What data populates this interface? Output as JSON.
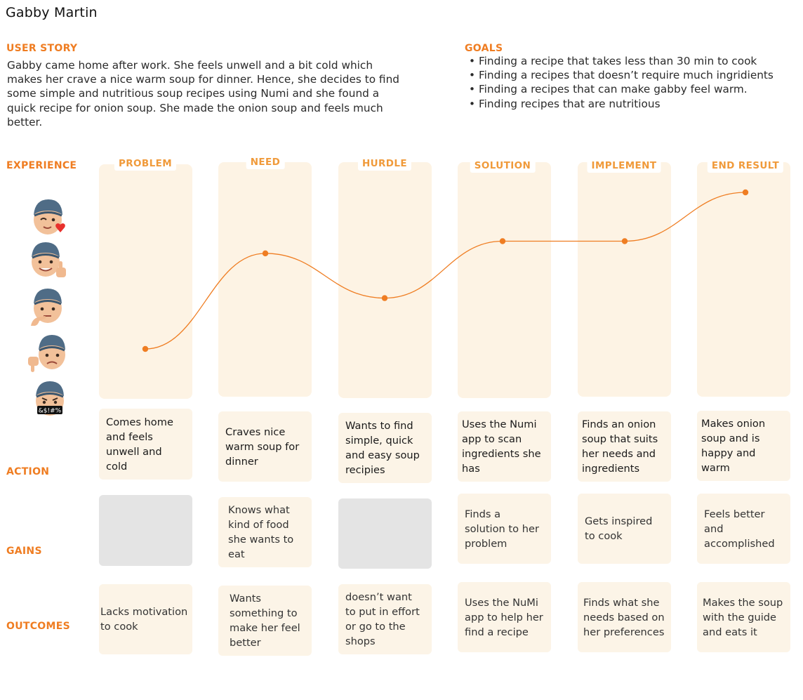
{
  "persona_name": "Gabby Martin",
  "user_story": {
    "label": "USER STORY",
    "text": "Gabby came home after work. She feels unwell and a bit cold which makes her crave a nice warm soup for dinner. Hence, she decides to find some simple and nutritious soup recipes using Numi and she found a quick recipe for onion soup. She made the onion soup and feels much better."
  },
  "goals": {
    "label": "GOALS",
    "items": [
      "Finding a recipe that takes less than 30 min to cook",
      "Finding a recipes that doesn’t require much ingridients",
      "Finding a recipes that can make gabby feel warm.",
      "Finding recipes that are nutritious"
    ]
  },
  "row_labels": {
    "experience": "EXPERIENCE",
    "action": "ACTION",
    "gains": "GAINS",
    "outcomes": "OUTCOMES"
  },
  "emotion_scale": [
    {
      "icon": "love-wink-face-icon",
      "level": 5
    },
    {
      "icon": "thumbs-up-face-icon",
      "level": 4
    },
    {
      "icon": "thinking-face-icon",
      "level": 3
    },
    {
      "icon": "thumbs-down-face-icon",
      "level": 2
    },
    {
      "icon": "swearing-face-icon",
      "level": 1,
      "label": "&$!#%"
    }
  ],
  "stages": [
    {
      "title": "PROBLEM",
      "emotion": 1.55,
      "action": "Comes home and feels unwell and cold",
      "gains": "",
      "outcome": "Lacks motivation to cook"
    },
    {
      "title": "NEED",
      "emotion": 3.9,
      "action": "Craves nice warm soup for dinner",
      "gains": "Knows what kind of food she wants to eat",
      "outcome": "Wants something to make her feel better"
    },
    {
      "title": "HURDLE",
      "emotion": 2.8,
      "action": "Wants to find simple, quick and easy soup recipies",
      "gains": "",
      "outcome": "doesn’t want to put in effort or go to the shops"
    },
    {
      "title": "SOLUTION",
      "emotion": 4.2,
      "action": "Uses the Numi app to scan ingredients she has",
      "gains": "Finds a solution to her problem",
      "outcome": "Uses the NuMi app to help her find a recipe"
    },
    {
      "title": "IMPLEMENT",
      "emotion": 4.2,
      "action": "Finds an onion soup that suits her needs and ingredients",
      "gains": "Gets inspired to cook",
      "outcome": "Finds what she needs based on her preferences"
    },
    {
      "title": "END RESULT",
      "emotion": 5.4,
      "action": "Makes onion soup and is happy and warm",
      "gains": "Feels better and accomplished",
      "outcome": "Makes the soup with the guide and eats it"
    }
  ],
  "colors": {
    "accent": "#ef7d22",
    "column_bg": "#fdf3e4",
    "card_bg": "#fcf4e7",
    "empty_card": "#e4e4e4",
    "curve": "#ef7d22"
  }
}
